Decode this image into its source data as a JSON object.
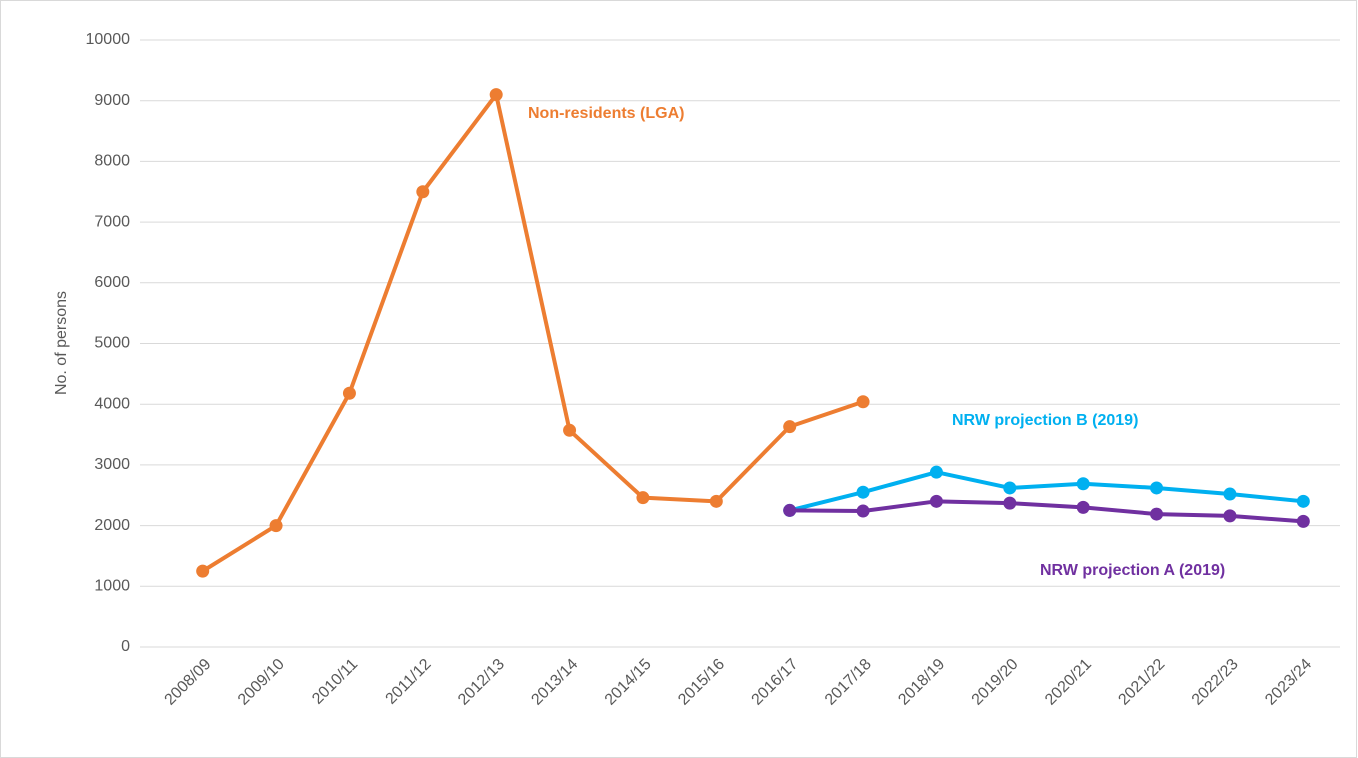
{
  "chart_data": {
    "type": "line",
    "y_label": "No. of persons",
    "categories": [
      "2008/09",
      "2009/10",
      "2010/11",
      "2011/12",
      "2012/13",
      "2013/14",
      "2014/15",
      "2015/16",
      "2016/17",
      "2017/18",
      "2018/19",
      "2019/20",
      "2020/21",
      "2021/22",
      "2022/23",
      "2023/24"
    ],
    "series": [
      {
        "name": "Non-residents (LGA)",
        "color": "#ED7D31",
        "values": [
          1250,
          2000,
          4180,
          7500,
          9100,
          3570,
          2460,
          2400,
          3630,
          4040,
          null,
          null,
          null,
          null,
          null,
          null
        ]
      },
      {
        "name": "NRW projection B (2019)",
        "color": "#00B0F0",
        "values": [
          null,
          null,
          null,
          null,
          null,
          null,
          null,
          null,
          2250,
          2550,
          2880,
          2620,
          2690,
          2620,
          2520,
          2400
        ]
      },
      {
        "name": "NRW projection A (2019)",
        "color": "#7030A0",
        "values": [
          null,
          null,
          null,
          null,
          null,
          null,
          null,
          null,
          2250,
          2240,
          2400,
          2370,
          2300,
          2190,
          2160,
          2070
        ]
      }
    ],
    "ylim": [
      0,
      10000
    ],
    "yticks": [
      0,
      1000,
      2000,
      3000,
      4000,
      5000,
      6000,
      7000,
      8000,
      9000,
      10000
    ],
    "grid": true
  }
}
